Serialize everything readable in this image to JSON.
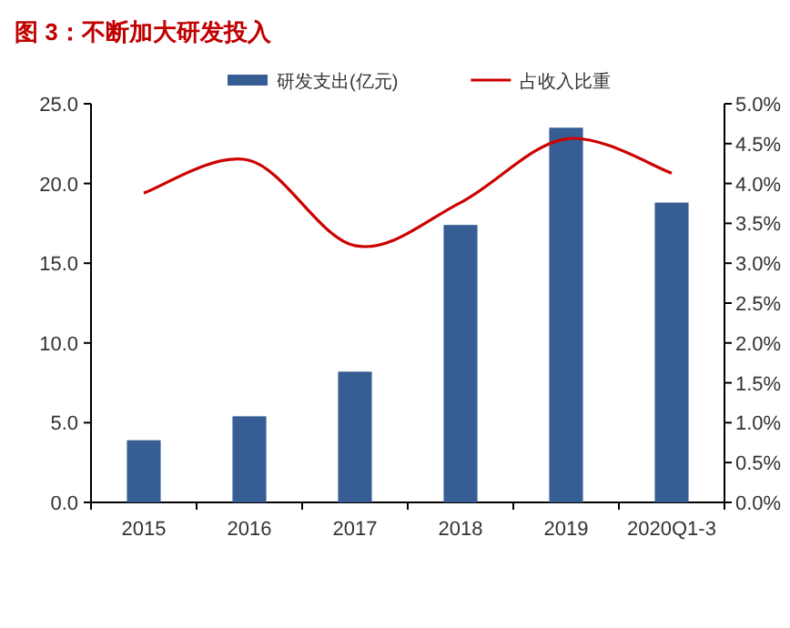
{
  "chart_data": {
    "type": "bar",
    "title": "图 3：不断加大研发投入",
    "categories": [
      "2015",
      "2016",
      "2017",
      "2018",
      "2019",
      "2020Q1-3"
    ],
    "series": [
      {
        "name": "研发支出(亿元)",
        "color": "#375e94",
        "values": [
          3.9,
          5.4,
          8.2,
          17.4,
          23.5,
          18.8
        ]
      },
      {
        "name": "占收入比重",
        "type": "line",
        "axis": "y2",
        "color": "#cc0000",
        "values": [
          3.88,
          4.29,
          3.22,
          3.76,
          4.56,
          4.13
        ]
      }
    ],
    "ylim": [
      0,
      25
    ],
    "yticks": [
      {
        "value": 0,
        "label": "0.0"
      },
      {
        "value": 5,
        "label": "5.0"
      },
      {
        "value": 10,
        "label": "10.0"
      },
      {
        "value": 15,
        "label": "15.0"
      },
      {
        "value": 20,
        "label": "20.0"
      },
      {
        "value": 25,
        "label": "25.0"
      }
    ],
    "y2lim": [
      0,
      5
    ],
    "y2ticks": [
      {
        "value": 0,
        "label": "0.0%"
      },
      {
        "value": 0.5,
        "label": "0.5%"
      },
      {
        "value": 1,
        "label": "1.0%"
      },
      {
        "value": 1.5,
        "label": "1.5%"
      },
      {
        "value": 2,
        "label": "2.0%"
      },
      {
        "value": 2.5,
        "label": "2.5%"
      },
      {
        "value": 3,
        "label": "3.0%"
      },
      {
        "value": 3.5,
        "label": "3.5%"
      },
      {
        "value": 4,
        "label": "4.0%"
      },
      {
        "value": 4.5,
        "label": "4.5%"
      },
      {
        "value": 5,
        "label": "5.0%"
      }
    ],
    "legend": "top",
    "grid": false
  }
}
